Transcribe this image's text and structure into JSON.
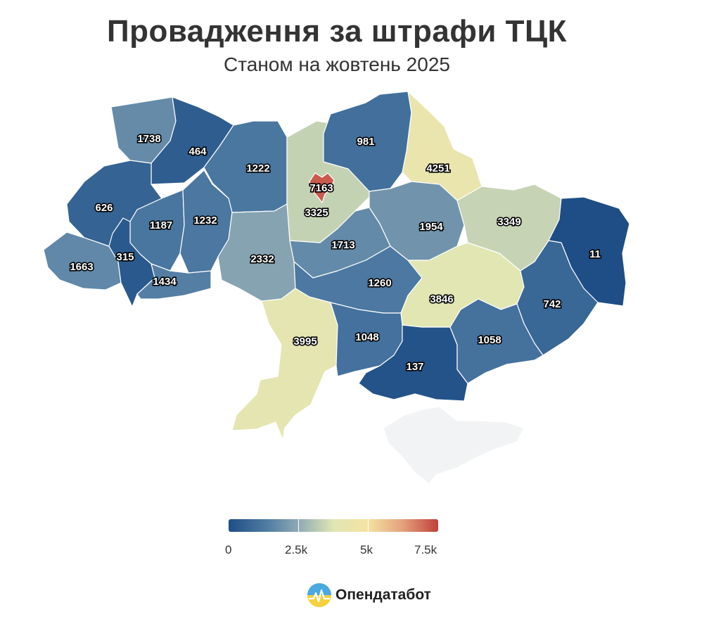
{
  "title": "Провадження за штрафи ТЦК",
  "subtitle": "Станом на жовтень 2025",
  "legend": {
    "min": 0,
    "max": 7500,
    "ticks": [
      "0",
      "2.5k",
      "5k",
      "7.5k"
    ]
  },
  "colors": {
    "low": "#1f4e86",
    "mid": "#f6e8a8",
    "high": "#c0403c",
    "no_data": "#f2f3f4"
  },
  "regions": [
    {
      "key": "volyn",
      "value": 1738
    },
    {
      "key": "rivne",
      "value": 464
    },
    {
      "key": "zhytomyr",
      "value": 1222
    },
    {
      "key": "kyiv_oblast",
      "value": 3325
    },
    {
      "key": "kyiv_city",
      "value": 7163
    },
    {
      "key": "chernihiv",
      "value": 981
    },
    {
      "key": "sumy",
      "value": 4251
    },
    {
      "key": "poltava",
      "value": 1954
    },
    {
      "key": "kharkiv",
      "value": 3349
    },
    {
      "key": "luhansk",
      "value": 11
    },
    {
      "key": "lviv",
      "value": 626
    },
    {
      "key": "ternopil",
      "value": 1187
    },
    {
      "key": "khmelnytskyi",
      "value": 1232
    },
    {
      "key": "zakarpattia",
      "value": 1663
    },
    {
      "key": "ivano_frankivsk",
      "value": 315
    },
    {
      "key": "chernivtsi",
      "value": 1434
    },
    {
      "key": "vinnytsia",
      "value": 2332
    },
    {
      "key": "cherkasy",
      "value": 1713
    },
    {
      "key": "kirovohrad",
      "value": 1260
    },
    {
      "key": "dnipropetrovsk",
      "value": 3846
    },
    {
      "key": "donetsk",
      "value": 742
    },
    {
      "key": "odesa",
      "value": 3995
    },
    {
      "key": "mykolaiv",
      "value": 1048
    },
    {
      "key": "kherson",
      "value": 137
    },
    {
      "key": "zaporizhzhia",
      "value": 1058
    },
    {
      "key": "crimea",
      "value": null
    }
  ],
  "brand": {
    "name": "Опендатабот",
    "icon": "opendatabot-logo-icon"
  }
}
